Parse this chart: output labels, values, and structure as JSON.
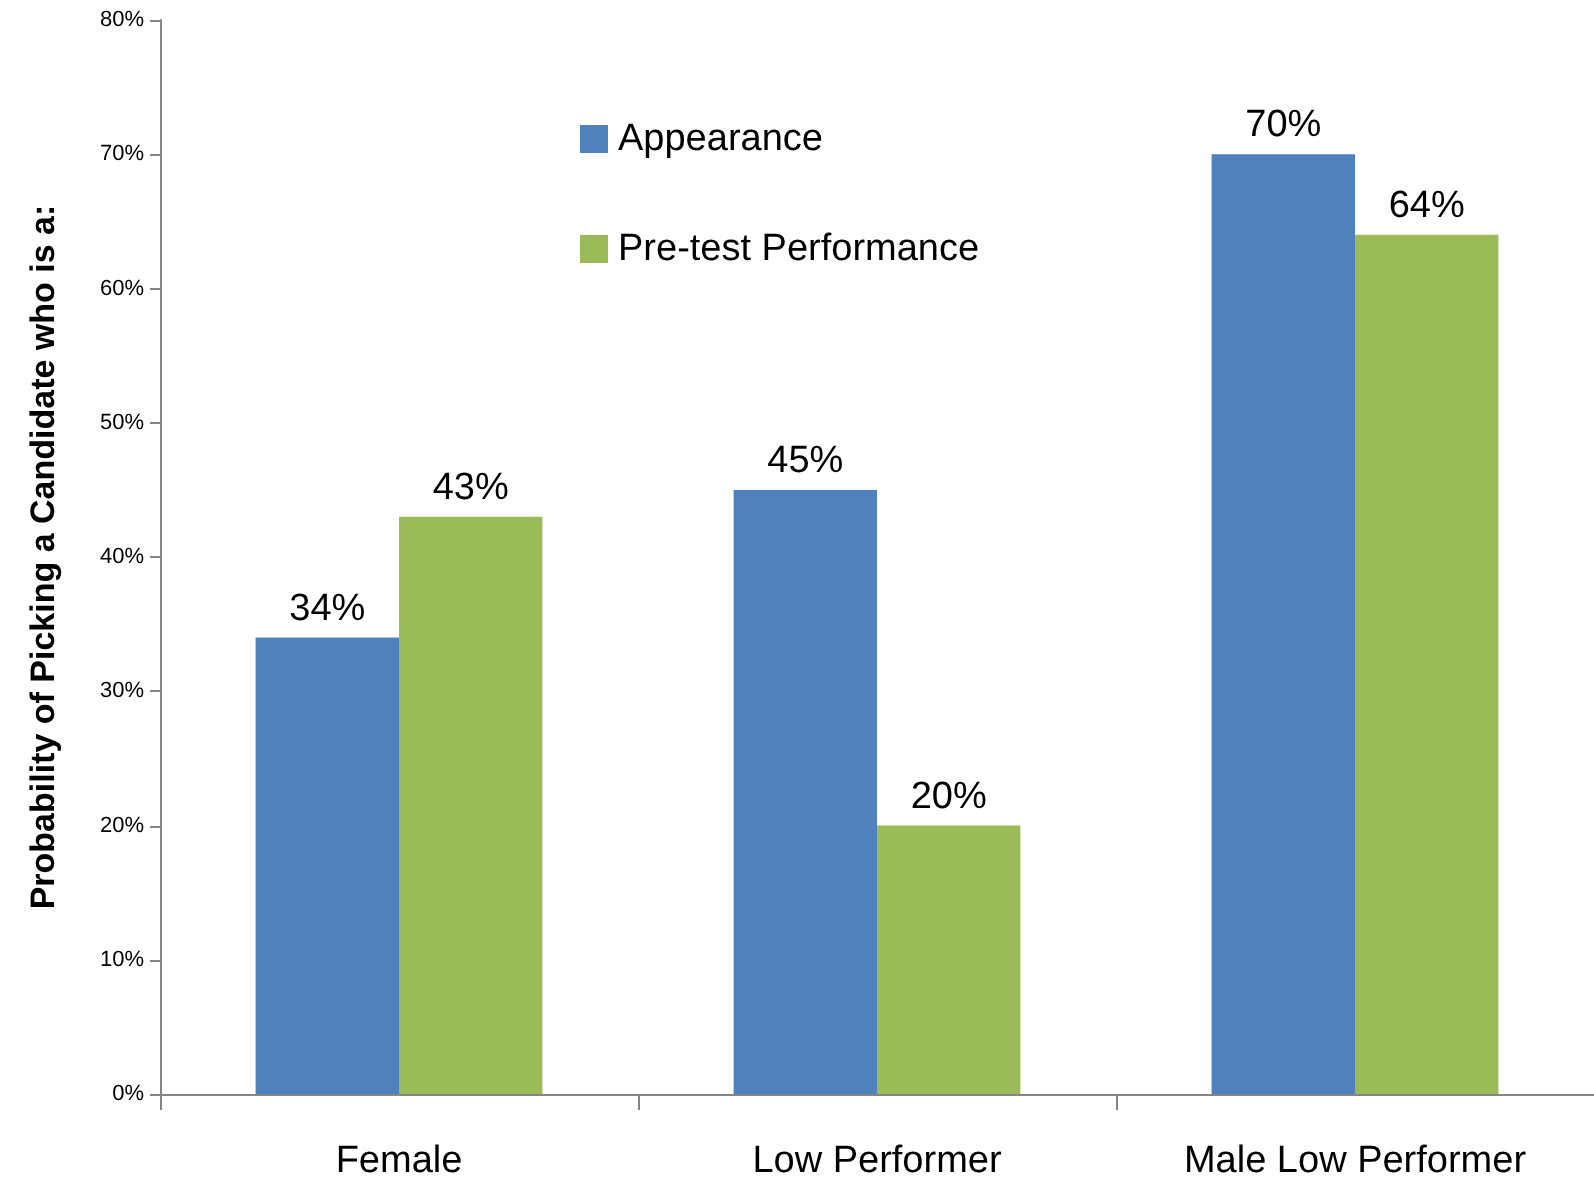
{
  "chart_data": {
    "type": "bar",
    "ylabel": "Probability of Picking a Candidate who is a:",
    "categories": [
      "Female",
      "Low Performer",
      "Male Low Performer"
    ],
    "series": [
      {
        "name": "Appearance",
        "color": "#4f81bd",
        "values": [
          34,
          45,
          70
        ]
      },
      {
        "name": "Pre-test Performance",
        "color": "#9bbb59",
        "values": [
          43,
          20,
          64
        ]
      }
    ],
    "ylim": [
      0,
      80
    ],
    "yticks": [
      {
        "value": 0,
        "label": "0%"
      },
      {
        "value": 10,
        "label": "10%"
      },
      {
        "value": 20,
        "label": "20%"
      },
      {
        "value": 30,
        "label": "30%"
      },
      {
        "value": 40,
        "label": "40%"
      },
      {
        "value": 50,
        "label": "50%"
      },
      {
        "value": 60,
        "label": "60%"
      },
      {
        "value": 70,
        "label": "70%"
      },
      {
        "value": 80,
        "label": "80%"
      }
    ],
    "value_labels": [
      [
        "34%",
        "45%",
        "70%"
      ],
      [
        "43%",
        "20%",
        "64%"
      ]
    ],
    "grid": false,
    "legend": "top"
  }
}
